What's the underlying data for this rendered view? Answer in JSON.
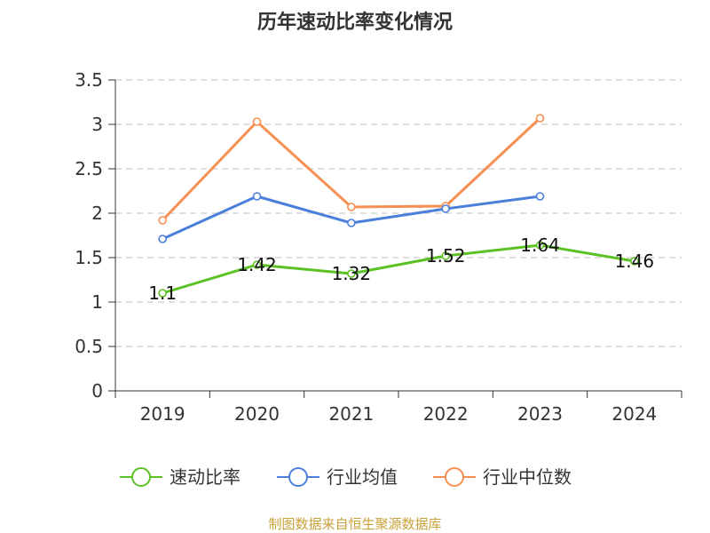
{
  "chart_data": {
    "type": "line",
    "title": "历年速动比率变化情况",
    "categories": [
      "2019",
      "2020",
      "2021",
      "2022",
      "2023",
      "2024"
    ],
    "ylim": [
      0,
      3.5
    ],
    "yticks": [
      "0",
      "0.5",
      "1",
      "1.5",
      "2",
      "2.5",
      "3",
      "3.5"
    ],
    "grid": true,
    "legend_position": "bottom",
    "series": [
      {
        "name": "速动比率",
        "color": "#5cc124",
        "values": [
          1.1,
          1.42,
          1.32,
          1.52,
          1.64,
          1.46
        ],
        "labels": [
          "1.1",
          "1.42",
          "1.32",
          "1.52",
          "1.64",
          "1.46"
        ]
      },
      {
        "name": "行业均值",
        "color": "#4a7fdc",
        "values": [
          1.71,
          2.19,
          1.89,
          2.05,
          2.19,
          null
        ]
      },
      {
        "name": "行业中位数",
        "color": "#f78e52",
        "values": [
          1.92,
          3.03,
          2.07,
          2.08,
          3.07,
          null
        ]
      }
    ]
  },
  "source": "制图数据来自恒生聚源数据库"
}
